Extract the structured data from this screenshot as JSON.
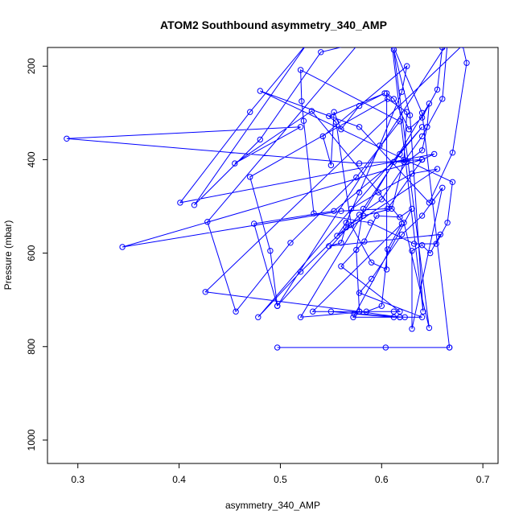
{
  "chart_data": {
    "type": "line",
    "title": "ATOM2 Southbound asymmetry_340_AMP",
    "xlabel": "asymmetry_340_AMP",
    "ylabel": "Pressure (mbar)",
    "xlim": [
      0.27,
      0.715
    ],
    "ylim": [
      1050,
      160
    ],
    "y_reversed": true,
    "x_ticks": [
      0.3,
      0.4,
      0.5,
      0.6,
      0.7
    ],
    "x_tick_labels": [
      "0.3",
      "0.4",
      "0.5",
      "0.6",
      "0.7"
    ],
    "y_ticks": [
      200,
      400,
      600,
      800,
      1000
    ],
    "y_tick_labels": [
      "200",
      "400",
      "600",
      "800",
      "1000"
    ],
    "grid": false,
    "legend": "none",
    "series_color": "#0000ff",
    "series": [
      {
        "points": [
          [
            0.497,
            802
          ],
          [
            0.604,
            802
          ],
          [
            0.667,
            802
          ],
          [
            0.667,
            802
          ],
          [
            0.64,
            300
          ],
          [
            0.61,
            150
          ],
          [
            0.641,
            725
          ],
          [
            0.628,
            305
          ],
          [
            0.612,
            165
          ],
          [
            0.647,
            760
          ],
          [
            0.622,
            535
          ],
          [
            0.531,
            296
          ],
          [
            0.455,
            408
          ],
          [
            0.52,
            330
          ],
          [
            0.289,
            355
          ],
          [
            0.578,
            408
          ],
          [
            0.64,
            400
          ],
          [
            0.344,
            587
          ],
          [
            0.56,
            510
          ],
          [
            0.606,
            505
          ],
          [
            0.64,
            400
          ],
          [
            0.652,
            388
          ],
          [
            0.401,
            492
          ],
          [
            0.47,
            298
          ],
          [
            0.527,
            150
          ],
          [
            0.415,
            497
          ],
          [
            0.48,
            357
          ],
          [
            0.54,
            170
          ],
          [
            0.578,
            150
          ],
          [
            0.428,
            533
          ],
          [
            0.456,
            725
          ],
          [
            0.51,
            578
          ],
          [
            0.575,
            438
          ],
          [
            0.618,
            318
          ],
          [
            0.52,
            208
          ],
          [
            0.521,
            275
          ],
          [
            0.523,
            317
          ],
          [
            0.533,
            515
          ],
          [
            0.589,
            535
          ],
          [
            0.632,
            580
          ],
          [
            0.654,
            580
          ],
          [
            0.665,
            535
          ],
          [
            0.67,
            448
          ],
          [
            0.48,
            253
          ],
          [
            0.578,
            330
          ],
          [
            0.647,
            492
          ],
          [
            0.67,
            385
          ],
          [
            0.684,
            193
          ],
          [
            0.68,
            155
          ],
          [
            0.426,
            683
          ],
          [
            0.578,
            725
          ],
          [
            0.575,
            593
          ],
          [
            0.582,
            505
          ],
          [
            0.618,
            388
          ],
          [
            0.64,
            330
          ],
          [
            0.478,
            737
          ],
          [
            0.52,
            640
          ],
          [
            0.565,
            545
          ],
          [
            0.582,
            520
          ],
          [
            0.61,
            505
          ],
          [
            0.622,
            400
          ],
          [
            0.625,
            298
          ],
          [
            0.606,
            270
          ],
          [
            0.47,
            437
          ],
          [
            0.49,
            595
          ],
          [
            0.497,
            713
          ],
          [
            0.474,
            537
          ],
          [
            0.553,
            510
          ],
          [
            0.612,
            405
          ],
          [
            0.622,
            405
          ],
          [
            0.64,
            350
          ],
          [
            0.66,
            270
          ],
          [
            0.665,
            150
          ],
          [
            0.497,
            713
          ],
          [
            0.578,
            518
          ],
          [
            0.6,
            485
          ],
          [
            0.625,
            405
          ],
          [
            0.64,
            380
          ],
          [
            0.645,
            330
          ],
          [
            0.647,
            280
          ],
          [
            0.52,
            737
          ],
          [
            0.585,
            725
          ],
          [
            0.6,
            713
          ],
          [
            0.606,
            592
          ],
          [
            0.62,
            537
          ],
          [
            0.532,
            725
          ],
          [
            0.578,
            725
          ],
          [
            0.618,
            737
          ],
          [
            0.55,
            725
          ],
          [
            0.578,
            725
          ],
          [
            0.612,
            725
          ],
          [
            0.618,
            725
          ],
          [
            0.56,
            628
          ],
          [
            0.583,
            575
          ],
          [
            0.595,
            520
          ],
          [
            0.618,
            523
          ],
          [
            0.63,
            505
          ],
          [
            0.572,
            737
          ],
          [
            0.618,
            737
          ],
          [
            0.623,
            737
          ],
          [
            0.573,
            730
          ],
          [
            0.612,
            737
          ],
          [
            0.64,
            737
          ],
          [
            0.578,
            685
          ],
          [
            0.59,
            655
          ],
          [
            0.62,
            560
          ],
          [
            0.64,
            520
          ],
          [
            0.65,
            490
          ],
          [
            0.66,
            460
          ],
          [
            0.63,
            762
          ],
          [
            0.63,
            595
          ],
          [
            0.64,
            583
          ],
          [
            0.648,
            600
          ],
          [
            0.658,
            560
          ],
          [
            0.548,
            585
          ],
          [
            0.56,
            578
          ],
          [
            0.57,
            505
          ],
          [
            0.597,
            470
          ],
          [
            0.63,
            430
          ],
          [
            0.655,
            420
          ],
          [
            0.556,
            563
          ],
          [
            0.565,
            535
          ],
          [
            0.578,
            470
          ],
          [
            0.598,
            370
          ],
          [
            0.62,
            255
          ],
          [
            0.625,
            200
          ],
          [
            0.542,
            350
          ],
          [
            0.55,
            412
          ],
          [
            0.553,
            298
          ],
          [
            0.56,
            335
          ],
          [
            0.578,
            285
          ],
          [
            0.603,
            258
          ],
          [
            0.548,
            307
          ],
          [
            0.555,
            320
          ],
          [
            0.57,
            540
          ],
          [
            0.59,
            620
          ],
          [
            0.605,
            635
          ],
          [
            0.605,
            258
          ],
          [
            0.612,
            270
          ],
          [
            0.627,
            335
          ],
          [
            0.64,
            310
          ],
          [
            0.655,
            250
          ],
          [
            0.66,
            160
          ]
        ]
      }
    ]
  }
}
